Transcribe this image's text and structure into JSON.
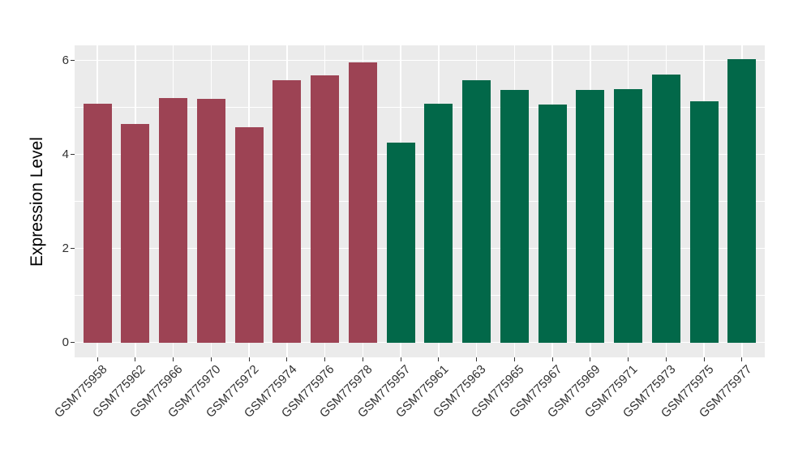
{
  "chart_data": {
    "type": "bar",
    "title": "",
    "xlabel": "",
    "ylabel": "Expression Level",
    "categories": [
      "GSM775958",
      "GSM775962",
      "GSM775966",
      "GSM775970",
      "GSM775972",
      "GSM775974",
      "GSM775976",
      "GSM775978",
      "GSM775957",
      "GSM775961",
      "GSM775963",
      "GSM775965",
      "GSM775967",
      "GSM775969",
      "GSM775971",
      "GSM775973",
      "GSM775975",
      "GSM775977"
    ],
    "values": [
      5.08,
      4.65,
      5.2,
      5.18,
      4.58,
      5.57,
      5.68,
      5.95,
      4.24,
      5.07,
      5.58,
      5.36,
      5.05,
      5.36,
      5.38,
      5.7,
      5.12,
      6.02
    ],
    "groups": [
      0,
      0,
      0,
      0,
      0,
      0,
      0,
      0,
      1,
      1,
      1,
      1,
      1,
      1,
      1,
      1,
      1,
      1
    ],
    "group_colors": [
      "#9d4354",
      "#026849"
    ],
    "yticks": [
      0,
      2,
      4,
      6
    ],
    "minor_yticks": [
      1,
      3,
      5
    ],
    "ylim": [
      0,
      6.3
    ],
    "grid": "on",
    "legend": "none",
    "panel_background": "#ebebeb",
    "grid_color": "#ffffff",
    "tick_label_color": "#303030",
    "axis_title_color": "#000000"
  }
}
